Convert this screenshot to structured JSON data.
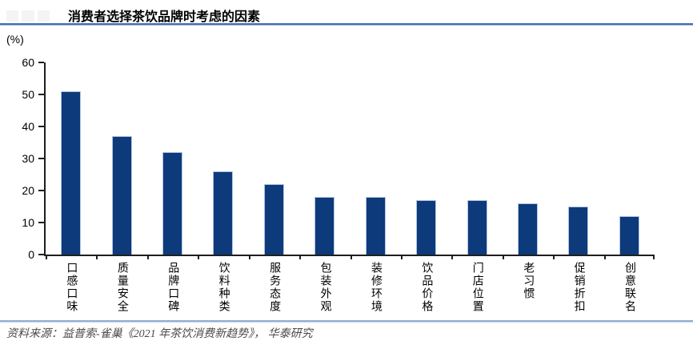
{
  "header": {
    "title": "消费者选择茶饮品牌时考虑的因素"
  },
  "chart_data": {
    "type": "bar",
    "title": "消费者选择茶饮品牌时考虑的因素",
    "unit_label": "(%)",
    "categories": [
      "口感口味",
      "质量安全",
      "品牌口碑",
      "饮料种类",
      "服务态度",
      "包装外观",
      "装修环境",
      "饮品价格",
      "门店位置",
      "老习惯",
      "促销折扣",
      "创意联名"
    ],
    "values": [
      51,
      37,
      32,
      26,
      22,
      18,
      18,
      17,
      17,
      16,
      15,
      12
    ],
    "xlabel": "",
    "ylabel": "(%)",
    "ylim": [
      0,
      60
    ],
    "yticks": [
      0,
      10,
      20,
      30,
      40,
      50,
      60
    ],
    "grid": "off",
    "legend": "none",
    "bar_color": "#0d3a7a",
    "bar_border_color": "#b3c5e6",
    "axis_color": "#1f1f1f",
    "title_rule_color": "#3e6cb3",
    "footer_rule_color": "#94abd1"
  },
  "footer": {
    "source": "资料来源：益普索-雀巢《2021 年茶饮消费新趋势》，  华泰研究"
  }
}
